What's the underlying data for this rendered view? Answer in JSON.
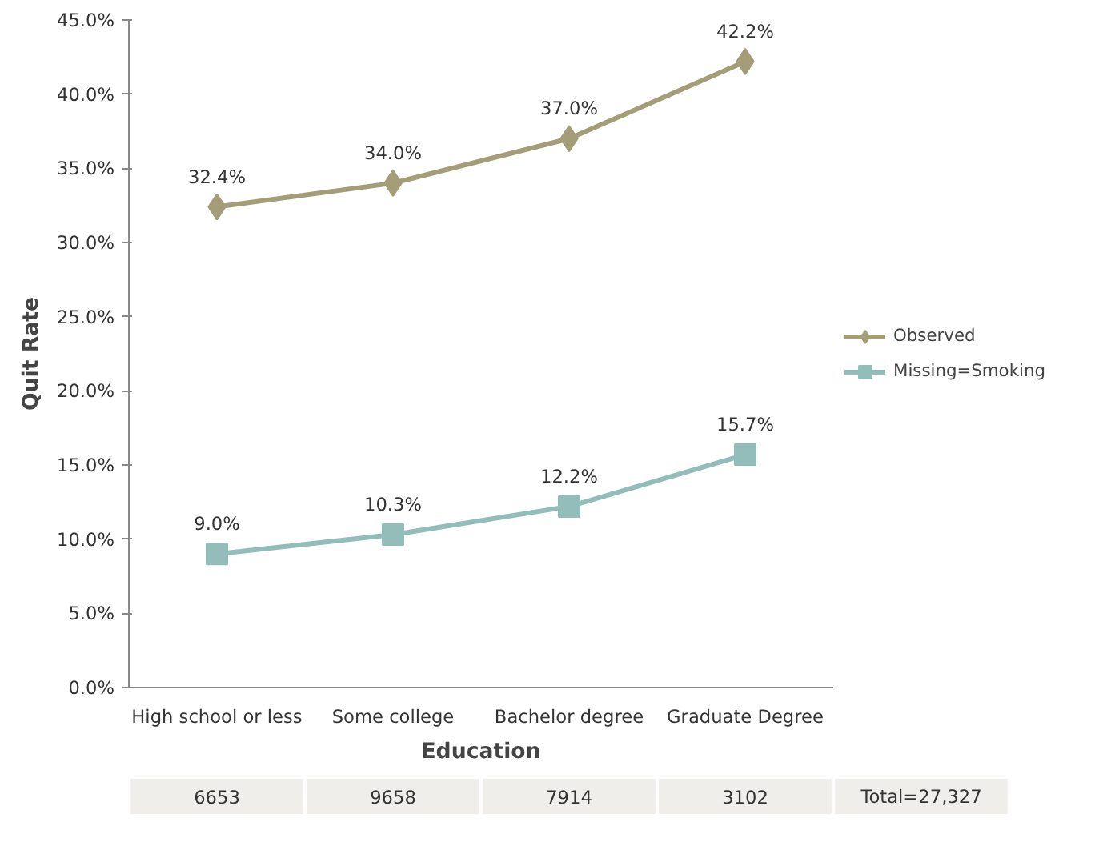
{
  "chart_data": {
    "type": "line",
    "xlabel": "Education",
    "ylabel": "Quit Rate",
    "categories": [
      "High school or less",
      "Some college",
      "Bachelor degree",
      "Graduate Degree"
    ],
    "series": [
      {
        "name": "Observed",
        "color": "#a39e78",
        "marker": "diamond",
        "values": [
          32.4,
          34.0,
          37.0,
          42.2
        ],
        "value_labels": [
          "32.4%",
          "34.0%",
          "37.0%",
          "42.2%"
        ]
      },
      {
        "name": "Missing=Smoking",
        "color": "#93bdb9",
        "marker": "square",
        "values": [
          9.0,
          10.3,
          12.2,
          15.7
        ],
        "value_labels": [
          "9.0%",
          "10.3%",
          "12.2%",
          "15.7%"
        ]
      }
    ],
    "ylim": [
      0,
      45
    ],
    "yticks": [
      {
        "value": 0,
        "label": "0.0%"
      },
      {
        "value": 5,
        "label": "5.0%"
      },
      {
        "value": 10,
        "label": "10.0%"
      },
      {
        "value": 15,
        "label": "15.0%"
      },
      {
        "value": 20,
        "label": "20.0%"
      },
      {
        "value": 25,
        "label": "25.0%"
      },
      {
        "value": 30,
        "label": "30.0%"
      },
      {
        "value": 35,
        "label": "35.0%"
      },
      {
        "value": 40,
        "label": "40.0%"
      },
      {
        "value": 45,
        "label": "45.0%"
      }
    ],
    "grid": false,
    "legend": "right",
    "line_style": "solid",
    "annotations": [
      "6653",
      "9658",
      "7914",
      "3102",
      "Total=27,327"
    ]
  }
}
